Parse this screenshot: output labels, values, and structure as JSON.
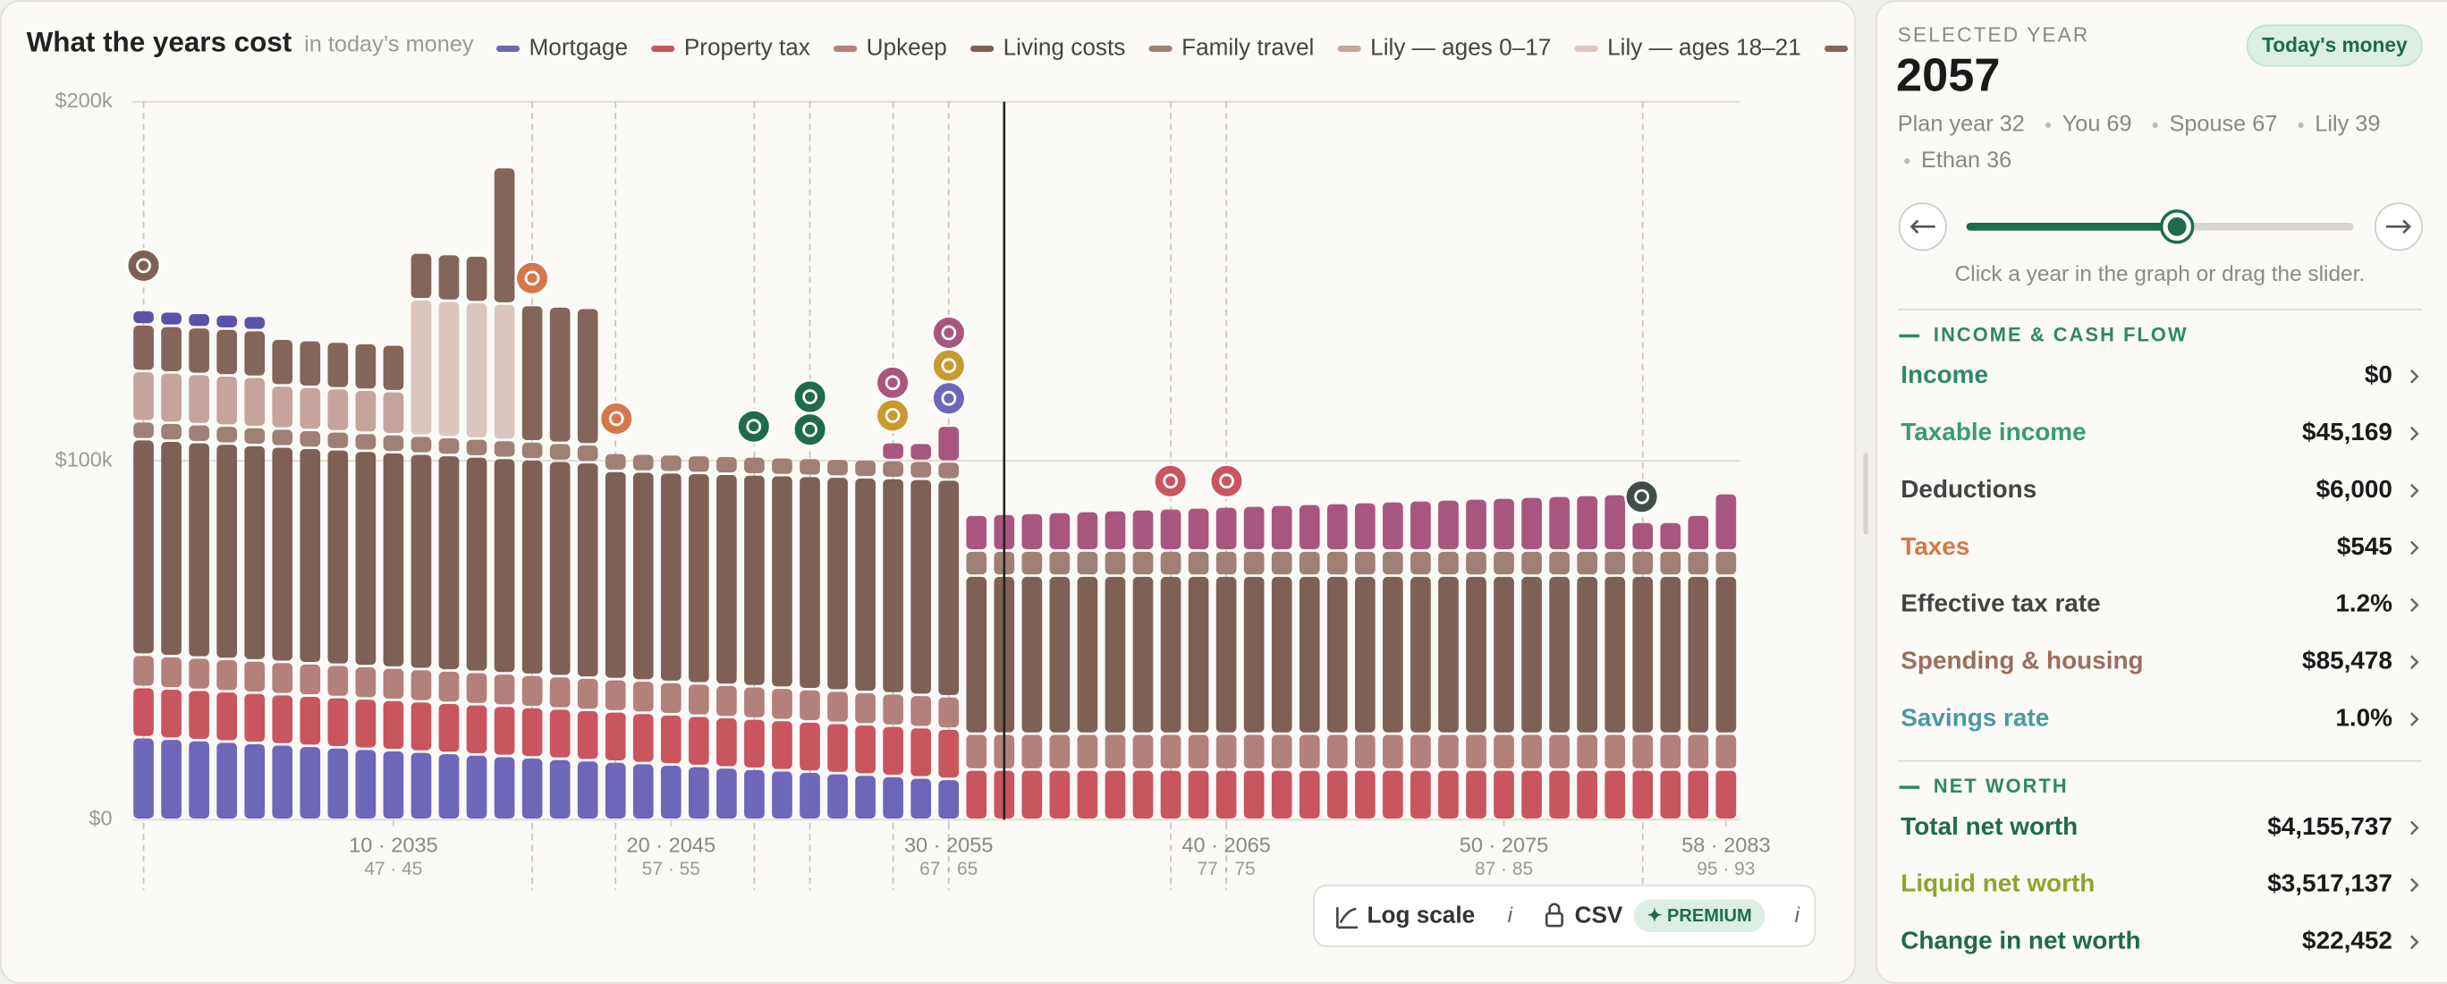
{
  "chart_data": {
    "type": "stacked_bar",
    "title": "What the years cost",
    "subtitle": "in today’s money",
    "x": [
      1,
      2,
      3,
      4,
      5,
      6,
      7,
      8,
      9,
      10,
      11,
      12,
      13,
      14,
      15,
      16,
      17,
      18,
      19,
      20,
      21,
      22,
      23,
      24,
      25,
      26,
      27,
      28,
      29,
      30,
      31,
      32,
      33,
      34,
      35,
      36,
      37,
      38,
      39,
      40,
      41,
      42,
      43,
      44,
      45,
      46,
      47,
      48,
      49,
      50,
      51,
      52,
      53,
      54,
      55,
      56,
      57,
      58
    ],
    "xlim": [
      1,
      58
    ],
    "xticks": [
      {
        "value": 10,
        "label": "10 · 2035"
      },
      {
        "value": 20,
        "label": "20 · 2045"
      },
      {
        "value": 30,
        "label": "30 · 2055"
      },
      {
        "value": 40,
        "label": "40 · 2065"
      },
      {
        "value": 50,
        "label": "50 · 2075"
      },
      {
        "value": 58,
        "label": "58 · 2083"
      }
    ],
    "xtick_sublabels": [
      "47 · 45",
      "57 · 55",
      "67 · 65",
      "77 · 75",
      "87 · 85",
      "95 · 93"
    ],
    "ylim": [
      0,
      200000
    ],
    "yticks": [
      {
        "value": 0,
        "label": "$0"
      },
      {
        "value": 100000,
        "label": "$100k"
      },
      {
        "value": 200000,
        "label": "$200k"
      }
    ],
    "grid": true,
    "log_scale": false,
    "selected": 32,
    "series": [
      {
        "name": "Mortgage",
        "color": "#6e66b8",
        "in_legend": true,
        "values": [
          23000,
          22600,
          22200,
          21800,
          21400,
          21000,
          20600,
          20200,
          19800,
          19400,
          19000,
          18600,
          18200,
          17800,
          17400,
          17000,
          16600,
          16200,
          15800,
          15400,
          15000,
          14600,
          14200,
          13800,
          13400,
          13000,
          12600,
          12200,
          11800,
          11400,
          0,
          0,
          0,
          0,
          0,
          0,
          0,
          0,
          0,
          0,
          0,
          0,
          0,
          0,
          0,
          0,
          0,
          0,
          0,
          0,
          0,
          0,
          0,
          0,
          0,
          0,
          0,
          0
        ]
      },
      {
        "name": "Property tax",
        "color": "#c9555f",
        "in_legend": true,
        "values": [
          14000,
          14000,
          14000,
          14000,
          14000,
          14000,
          14000,
          14000,
          14000,
          14000,
          14000,
          14000,
          14000,
          14000,
          14000,
          14000,
          14000,
          14000,
          14000,
          14000,
          14000,
          14000,
          14000,
          14000,
          14000,
          14000,
          14000,
          14000,
          14000,
          14000,
          14000,
          14000,
          14000,
          14000,
          14000,
          14000,
          14000,
          14000,
          14000,
          14000,
          14000,
          14000,
          14000,
          14000,
          14000,
          14000,
          14000,
          14000,
          14000,
          14000,
          14000,
          14000,
          14000,
          14000,
          14000,
          14000,
          14000,
          14000
        ]
      },
      {
        "name": "Upkeep",
        "color": "#b3807a",
        "in_legend": true,
        "values": [
          9000,
          9000,
          9000,
          9000,
          9000,
          9000,
          9000,
          9000,
          9000,
          9000,
          9000,
          9000,
          9000,
          9000,
          9000,
          9000,
          9000,
          9000,
          9000,
          9000,
          9000,
          9000,
          9000,
          9000,
          9000,
          9000,
          9000,
          9000,
          9000,
          9000,
          10000,
          10000,
          10000,
          10000,
          10000,
          10000,
          10000,
          10000,
          10000,
          10000,
          10000,
          10000,
          10000,
          10000,
          10000,
          10000,
          10000,
          10000,
          10000,
          10000,
          10000,
          10000,
          10000,
          10000,
          10000,
          10000,
          10000,
          10000
        ]
      },
      {
        "name": "Living costs",
        "color": "#7e6154",
        "in_legend": true,
        "values": [
          60000,
          60000,
          60000,
          60000,
          60000,
          60000,
          60000,
          60000,
          60000,
          60000,
          60000,
          60000,
          60000,
          60000,
          60000,
          60000,
          60000,
          58000,
          58200,
          58400,
          58600,
          58800,
          59000,
          59200,
          59400,
          59600,
          59800,
          60000,
          60200,
          60400,
          44000,
          44000,
          44000,
          44000,
          44000,
          44000,
          44000,
          44000,
          44000,
          44000,
          44000,
          44000,
          44000,
          44000,
          44000,
          44000,
          44000,
          44000,
          44000,
          44000,
          44000,
          44000,
          44000,
          44000,
          44000,
          44000,
          44000,
          44000
        ]
      },
      {
        "name": "Family travel",
        "color": "#a07f74",
        "in_legend": true,
        "values": [
          5000,
          5000,
          5000,
          5000,
          5000,
          5000,
          5000,
          5000,
          5000,
          5000,
          5000,
          5000,
          5000,
          5000,
          5000,
          5000,
          5000,
          5000,
          5000,
          5000,
          5000,
          5000,
          5000,
          5000,
          5000,
          5000,
          5000,
          5000,
          5000,
          5000,
          7000,
          7000,
          7000,
          7000,
          7000,
          7000,
          7000,
          7000,
          7000,
          7000,
          7000,
          7000,
          7000,
          7000,
          7000,
          7000,
          7000,
          7000,
          7000,
          7000,
          7000,
          7000,
          7000,
          7000,
          7000,
          7000,
          7000,
          7000
        ]
      },
      {
        "name": "Lily — ages 0–17",
        "color": "#c6a39b",
        "in_legend": true,
        "values": [
          14000,
          14000,
          14000,
          14000,
          14000,
          12000,
          12000,
          12000,
          12000,
          12000,
          0,
          0,
          0,
          0,
          0,
          0,
          0,
          0,
          0,
          0,
          0,
          0,
          0,
          0,
          0,
          0,
          0,
          0,
          0,
          0,
          0,
          0,
          0,
          0,
          0,
          0,
          0,
          0,
          0,
          0,
          0,
          0,
          0,
          0,
          0,
          0,
          0,
          0,
          0,
          0,
          0,
          0,
          0,
          0,
          0,
          0,
          0,
          0
        ]
      },
      {
        "name": "Lily — ages 18–21",
        "color": "#dcc5be",
        "in_legend": true,
        "values": [
          0,
          0,
          0,
          0,
          0,
          0,
          0,
          0,
          0,
          0,
          38000,
          38000,
          38000,
          38000,
          0,
          0,
          0,
          0,
          0,
          0,
          0,
          0,
          0,
          0,
          0,
          0,
          0,
          0,
          0,
          0,
          0,
          0,
          0,
          0,
          0,
          0,
          0,
          0,
          0,
          0,
          0,
          0,
          0,
          0,
          0,
          0,
          0,
          0,
          0,
          0,
          0,
          0,
          0,
          0,
          0,
          0,
          0,
          0
        ]
      },
      {
        "color": "#836559",
        "in_legend": true,
        "values": [
          13000,
          13000,
          13000,
          13000,
          13000,
          13000,
          13000,
          13000,
          13000,
          13000,
          13000,
          13000,
          13000,
          38000,
          38000,
          38000,
          38000,
          0,
          0,
          0,
          0,
          0,
          0,
          0,
          0,
          0,
          0,
          0,
          0,
          0,
          0,
          0,
          0,
          0,
          0,
          0,
          0,
          0,
          0,
          0,
          0,
          0,
          0,
          0,
          0,
          0,
          0,
          0,
          0,
          0,
          0,
          0,
          0,
          0,
          0,
          0,
          0,
          0
        ]
      },
      {
        "color": "#a9567f",
        "values": [
          0,
          0,
          0,
          0,
          0,
          0,
          0,
          0,
          0,
          0,
          0,
          0,
          0,
          0,
          0,
          0,
          0,
          0,
          0,
          0,
          0,
          0,
          0,
          0,
          0,
          0,
          0,
          5000,
          5000,
          10000,
          10000,
          10250,
          10500,
          10750,
          11000,
          11250,
          11500,
          11750,
          12000,
          12250,
          12500,
          12750,
          13000,
          13250,
          13500,
          13750,
          14000,
          14250,
          14500,
          14750,
          15000,
          15250,
          15500,
          15750,
          8000,
          8000,
          10000,
          16000
        ]
      },
      {
        "color": "#5a52a8",
        "values": [
          4000,
          4000,
          4000,
          4000,
          4000,
          0,
          0,
          0,
          0,
          0,
          0,
          0,
          0,
          0,
          0,
          0,
          0,
          0,
          0,
          0,
          0,
          0,
          0,
          0,
          0,
          0,
          0,
          0,
          0,
          0,
          0,
          0,
          0,
          0,
          0,
          0,
          0,
          0,
          0,
          0,
          0,
          0,
          0,
          0,
          0,
          0,
          0,
          0,
          0,
          0,
          0,
          0,
          0,
          0,
          0,
          0,
          0,
          0
        ]
      }
    ]
  },
  "toolbar": {
    "log_scale_label": "Log scale",
    "info": "i",
    "csv": "CSV",
    "premium": "✦ PREMIUM",
    "info2": "i"
  },
  "panel": {
    "header": "SELECTED YEAR",
    "badge": "Today's money",
    "year": "2057",
    "details": [
      "Plan year 32",
      "You 69",
      "Spouse 67",
      "Lily 39",
      "Ethan 36"
    ],
    "hint": "Click a year in the graph or drag the slider.",
    "sections": [
      {
        "title": "INCOME & CASH FLOW",
        "rows": [
          {
            "label": "Income",
            "value": "$0",
            "color": "#2b8a63"
          },
          {
            "label": "Taxable income",
            "value": "$45,169",
            "color": "#3a9a78"
          },
          {
            "label": "Deductions",
            "value": "$6,000",
            "color": "#444444"
          },
          {
            "label": "Taxes",
            "value": "$545",
            "color": "#d5774a"
          },
          {
            "label": "Effective tax rate",
            "value": "1.2%",
            "color": "#444444"
          },
          {
            "label": "Spending & housing",
            "value": "$85,478",
            "color": "#9a6f5a"
          },
          {
            "label": "Savings rate",
            "value": "1.0%",
            "color": "#4a9aa0"
          }
        ]
      },
      {
        "title": "NET WORTH",
        "rows": [
          {
            "label": "Total net worth",
            "value": "$4,155,737",
            "color": "#1f6b4a"
          },
          {
            "label": "Liquid net worth",
            "value": "$3,517,137",
            "color": "#8aa62e"
          },
          {
            "label": "Change in net worth",
            "value": "$22,452",
            "color": "#1f6b4a"
          }
        ]
      }
    ]
  }
}
